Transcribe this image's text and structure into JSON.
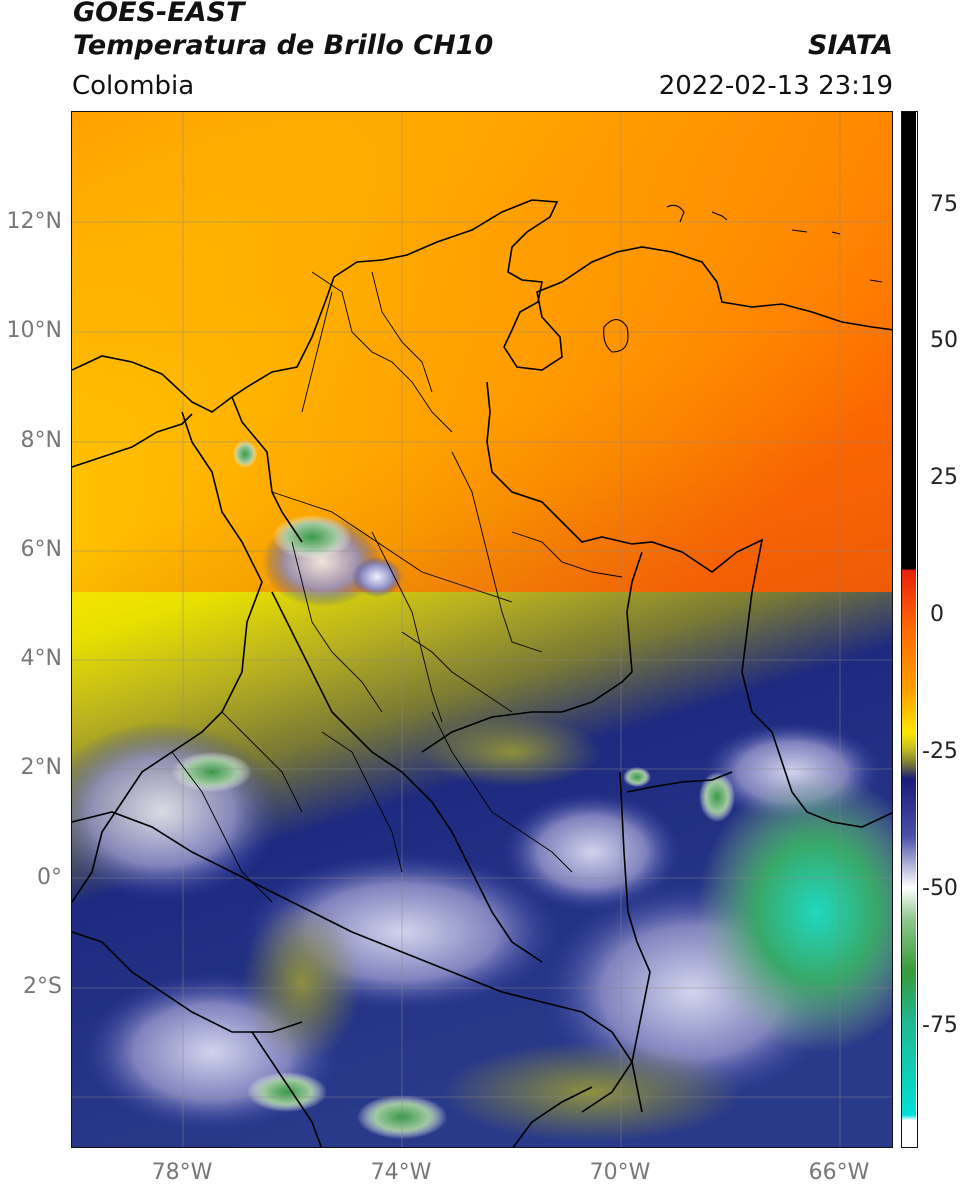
{
  "header": {
    "title_line1": "GOES-EAST",
    "title_line2": "Temperatura de Brillo CH10",
    "region": "Colombia",
    "agency": "SIATA",
    "timestamp": "2022-02-13 23:19"
  },
  "map": {
    "lat_labels": [
      "12°N",
      "10°N",
      "8°N",
      "6°N",
      "4°N",
      "2°N",
      "0°",
      "2°S"
    ],
    "lon_labels": [
      "78°W",
      "74°W",
      "70°W",
      "66°W"
    ]
  },
  "colorbar": {
    "ticks": [
      "75",
      "50",
      "25",
      "0",
      "-25",
      "-50",
      "-75"
    ],
    "colors": {
      "black": "#000000",
      "red": "#e8200a",
      "orange": "#ff8a00",
      "yellow": "#ffe600",
      "olive": "#8f8f2a",
      "navy": "#1a1a7a",
      "white": "#ffffff",
      "green": "#3a9a3a",
      "cyan": "#00e0d8"
    }
  }
}
